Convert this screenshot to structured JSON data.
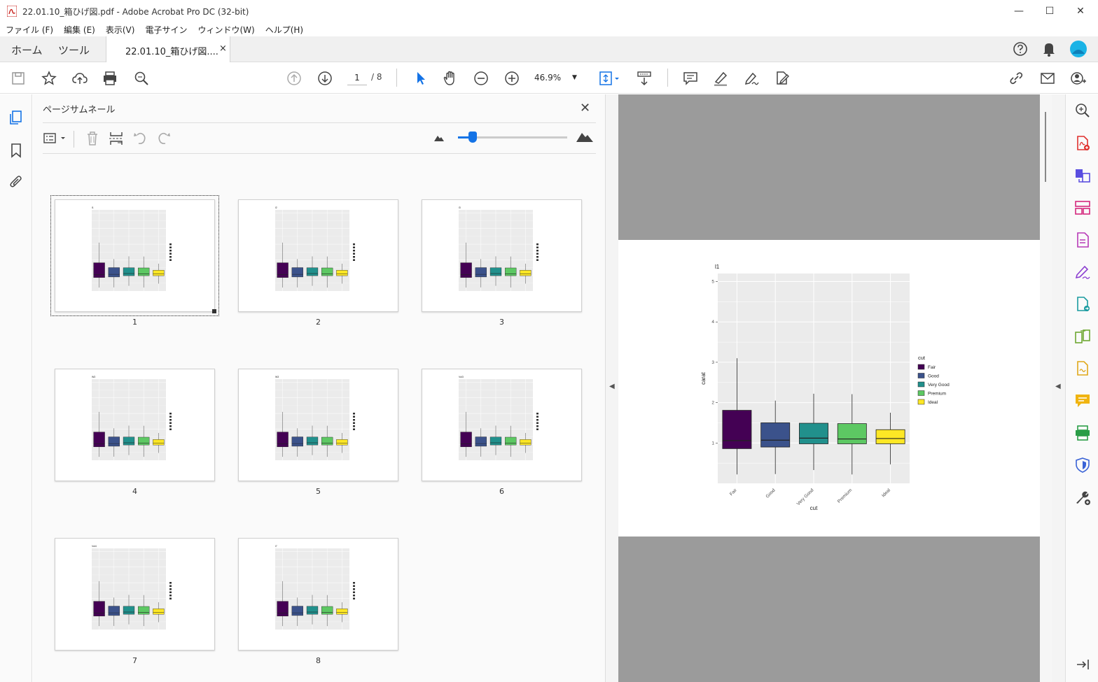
{
  "window": {
    "title": "22.01.10_箱ひげ図.pdf - Adobe Acrobat Pro DC (32-bit)",
    "minimize": "—",
    "maximize": "☐",
    "close": "✕"
  },
  "menu": [
    "ファイル (F)",
    "編集 (E)",
    "表示(V)",
    "電子サイン",
    "ウィンドウ(W)",
    "ヘルプ(H)"
  ],
  "tabs": {
    "home": "ホーム",
    "tools": "ツール",
    "document": "22.01.10_箱ひげ図....",
    "close": "×"
  },
  "toolbar": {
    "page_current": "1",
    "page_total": "/ 8",
    "zoom": "46.9%"
  },
  "panel": {
    "title": "ページサムネール",
    "close": "✕",
    "thumbnails": [
      {
        "num": "1",
        "label": "l1",
        "selected": true
      },
      {
        "num": "2",
        "label": "l2"
      },
      {
        "num": "3",
        "label": "l3"
      },
      {
        "num": "4",
        "label": "W3"
      },
      {
        "num": "5",
        "label": "W3"
      },
      {
        "num": "6",
        "label": "Vol3"
      },
      {
        "num": "7",
        "label": "Vol4"
      },
      {
        "num": "8",
        "label": "l7"
      }
    ]
  },
  "chart_data": {
    "type": "box",
    "title": "l1",
    "xlabel": "cut",
    "ylabel": "carat",
    "categories": [
      "Fair",
      "Good",
      "Very Good",
      "Premium",
      "Ideal"
    ],
    "ylim": [
      0,
      5.2
    ],
    "yticks": [
      "1",
      "2",
      "3",
      "4",
      "5"
    ],
    "legend_title": "cut",
    "legend_position": "right",
    "colors": [
      "#440154",
      "#3b528b",
      "#21908c",
      "#5dc863",
      "#fde725"
    ],
    "series": [
      {
        "name": "Fair",
        "min": 0.22,
        "q1": 0.86,
        "median": 1.06,
        "q3": 1.81,
        "max": 3.1
      },
      {
        "name": "Good",
        "min": 0.23,
        "q1": 0.9,
        "median": 1.07,
        "q3": 1.5,
        "max": 2.05
      },
      {
        "name": "Very Good",
        "min": 0.33,
        "q1": 0.98,
        "median": 1.12,
        "q3": 1.49,
        "max": 2.22
      },
      {
        "name": "Premium",
        "min": 0.22,
        "q1": 0.98,
        "median": 1.1,
        "q3": 1.48,
        "max": 2.21
      },
      {
        "name": "Ideal",
        "min": 0.47,
        "q1": 0.98,
        "median": 1.11,
        "q3": 1.33,
        "max": 1.75
      }
    ]
  }
}
